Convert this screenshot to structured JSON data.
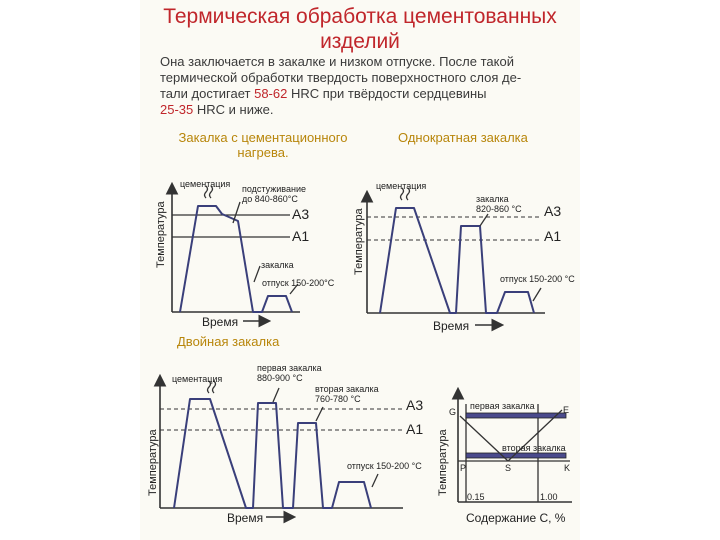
{
  "title": "Термическая обработка цементованных изделий",
  "intro": {
    "line1": "Она заключается в закалке и низком отпуске. После такой",
    "line2": "термической обработки твердость поверхностного слоя де-",
    "line3_a": "тали достигает ",
    "line3_hl": "58-62",
    "line3_b": " HRC при твёрдости сердцевины",
    "line4_hl": "25-35",
    "line4_b": " HRC и ниже."
  },
  "subtitles": {
    "left": "Закалка с цементационного нагрева.",
    "right": "Однократная закалка",
    "bottom": "Двойная закалка"
  },
  "axes": {
    "temperature": "Температура",
    "time": "Время",
    "carbon": "Содержание С, %"
  },
  "diagram1": {
    "cementation": "цементация",
    "cooling_1": "подстуживание",
    "cooling_2": "до 840-860°С",
    "a3": "A3",
    "a1": "A1",
    "quench": "закалка",
    "temper": "отпуск 150-200°С"
  },
  "diagram2": {
    "cementation": "цементация",
    "quench_1": "закалка",
    "quench_2": "820-860 °С",
    "a3": "A3",
    "a1": "A1",
    "temper": "отпуск 150-200 °С"
  },
  "diagram3": {
    "cementation": "цементация",
    "first_1": "первая закалка",
    "first_2": "880-900 °С",
    "second_1": "вторая закалка",
    "second_2": "760-780 °С",
    "a3": "A3",
    "a1": "A1",
    "temper": "отпуск 150-200 °С"
  },
  "diagram4": {
    "G": "G",
    "E": "E",
    "P": "P",
    "S": "S",
    "K": "K",
    "first": "первая закалка",
    "second": "вторая закалка",
    "x015": "0.15",
    "x100": "1.00"
  }
}
